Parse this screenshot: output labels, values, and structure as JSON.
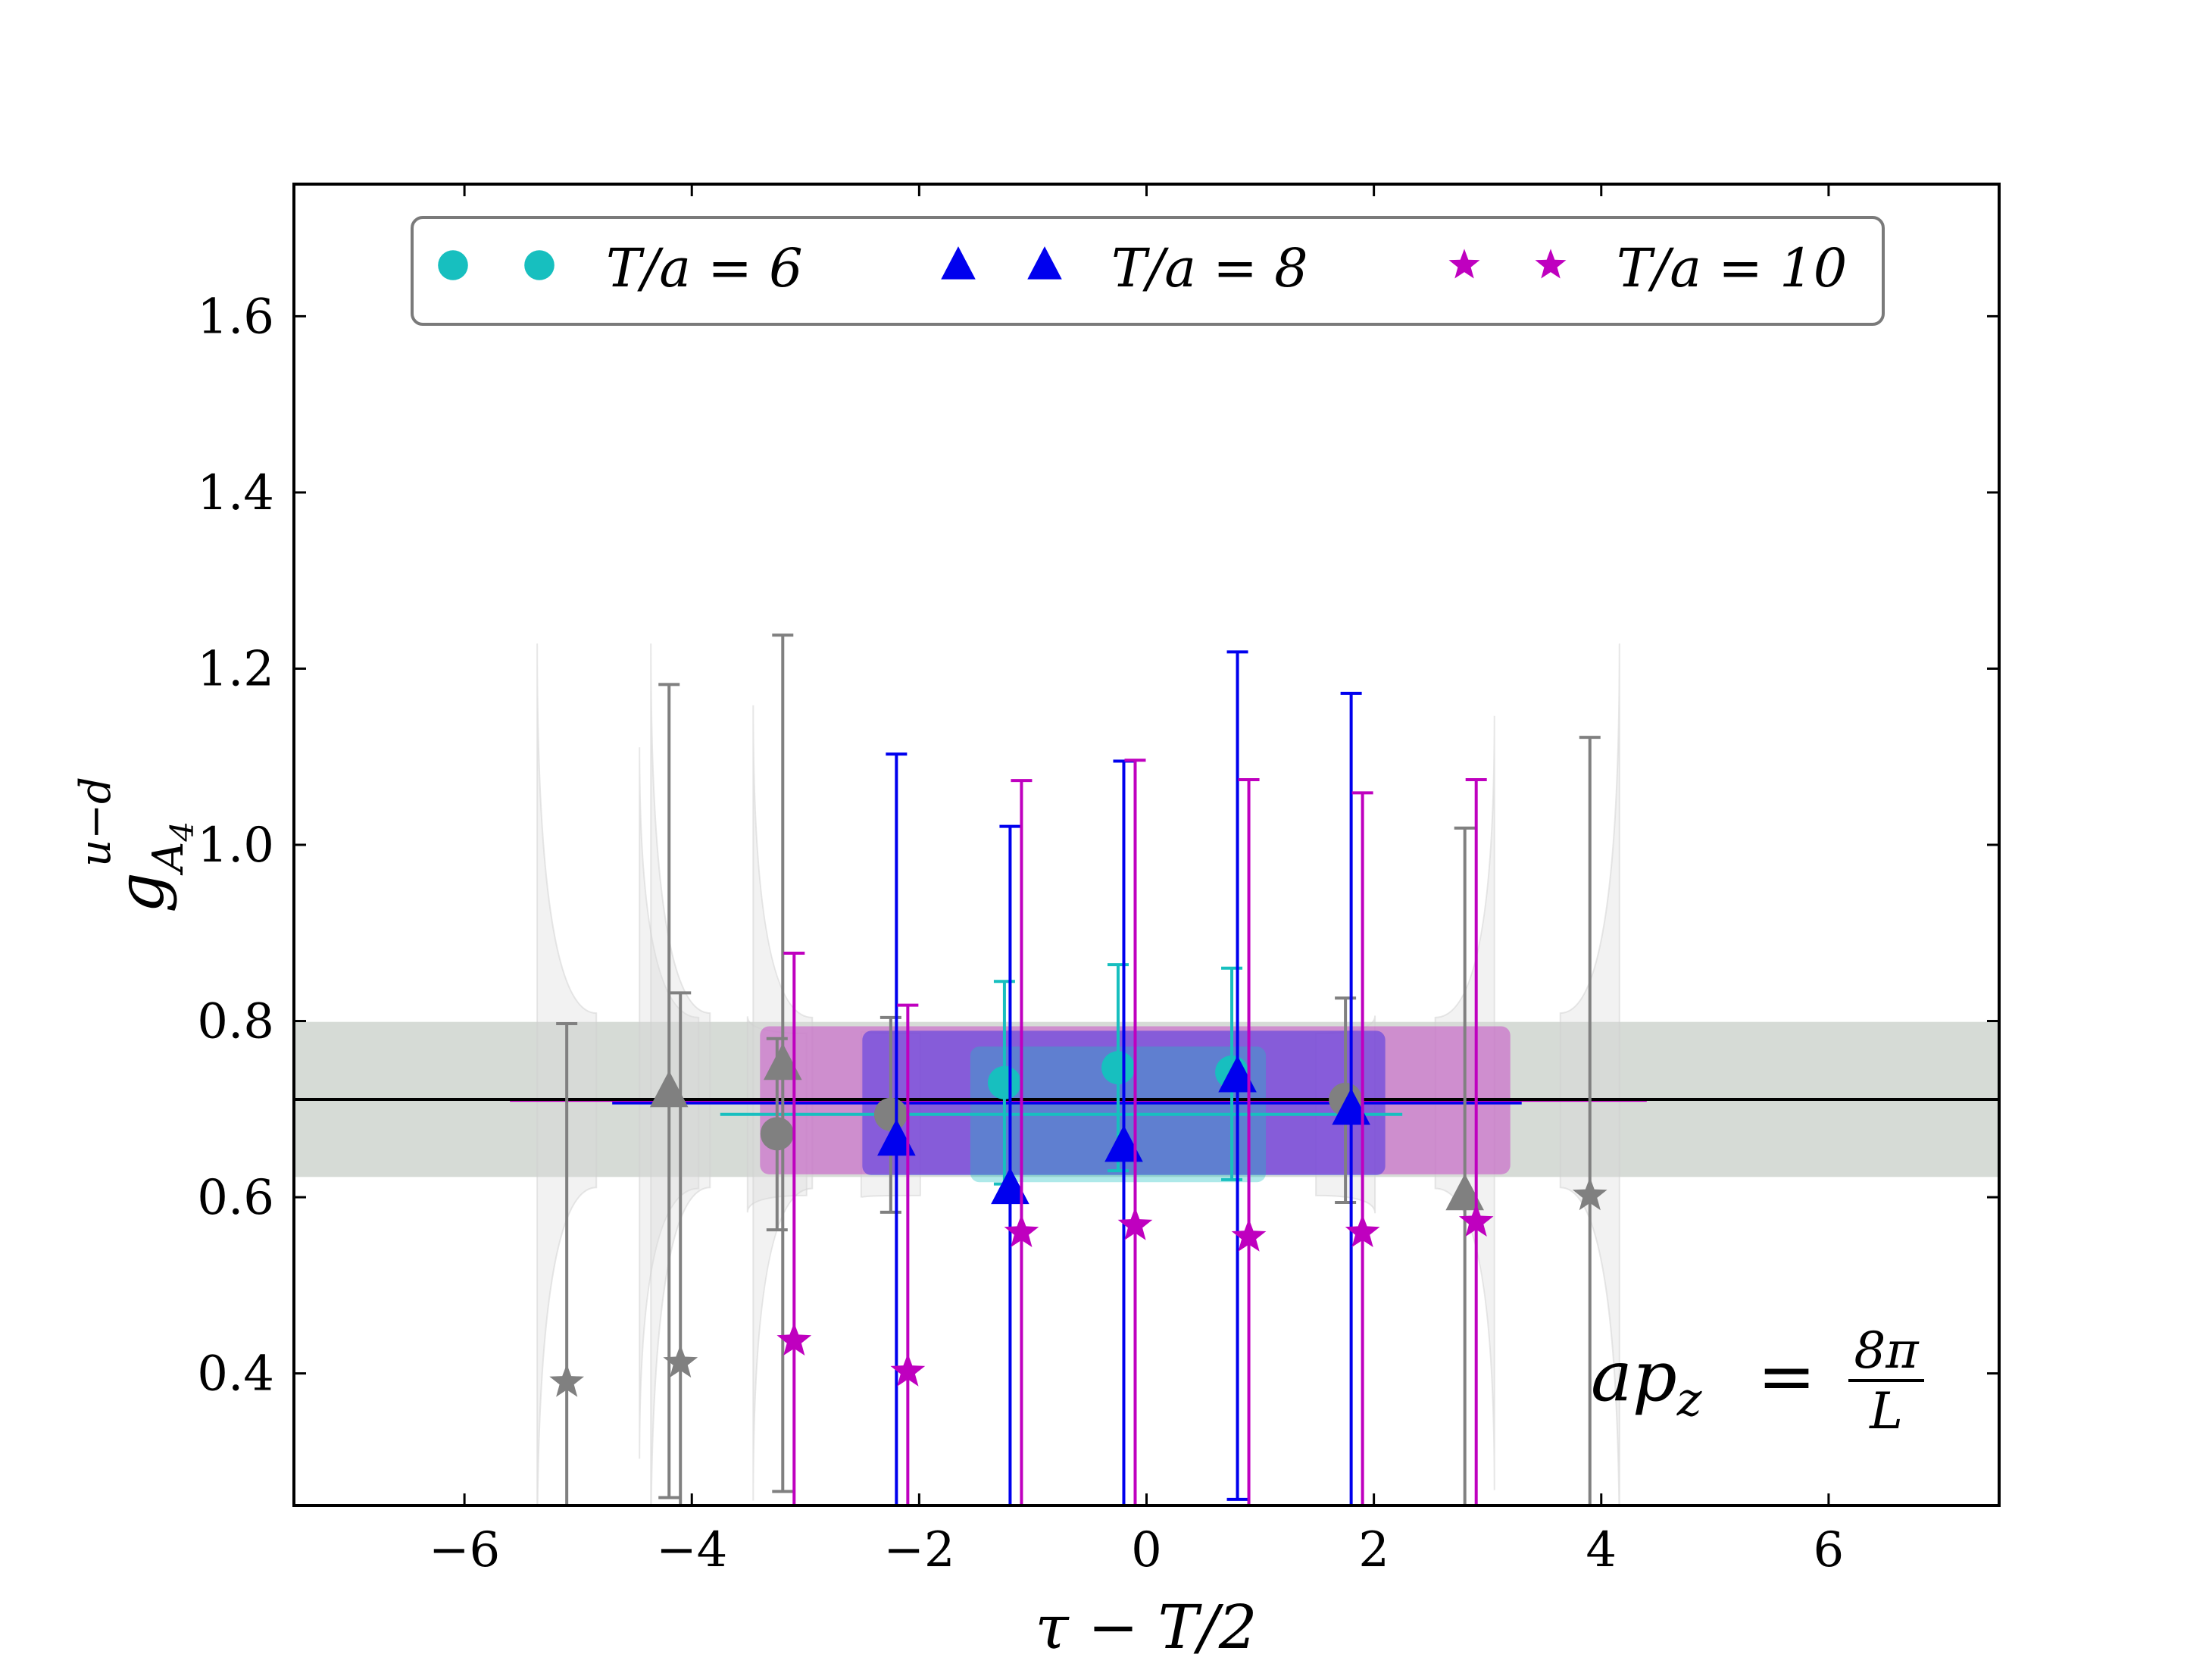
{
  "chart_data": {
    "type": "scatter",
    "title": "",
    "xlabel": "τ − T/2",
    "ylabel": "g",
    "ylabel_sup": "u−d",
    "ylabel_sub": "A",
    "ylabel_subsub": "4",
    "xlim": [
      -7.5,
      7.5
    ],
    "ylim": [
      0.25,
      1.75
    ],
    "xticks": [
      -6,
      -4,
      -2,
      0,
      2,
      4,
      6
    ],
    "xtick_labels": [
      "−6",
      "−4",
      "−2",
      "0",
      "2",
      "4",
      "6"
    ],
    "yticks": [
      0.4,
      0.6,
      0.8,
      1.0,
      1.2,
      1.4,
      1.6
    ],
    "ytick_labels": [
      "0.4",
      "0.6",
      "0.8",
      "1.0",
      "1.2",
      "1.4",
      "1.6"
    ],
    "grid": false,
    "legend_position": "top",
    "annotation": {
      "text": "ap",
      "sub": "z",
      "eq": "=",
      "num": "8π",
      "den": "L"
    },
    "horizontal_line": {
      "y": 0.711,
      "color": "#000000"
    },
    "horizontal_band": {
      "ymin": 0.623,
      "ymax": 0.799,
      "color": "#a3b0a3"
    },
    "series": [
      {
        "name": "T/a = 6",
        "marker": "circle",
        "color": "#17bfbf",
        "fit": {
          "y": 0.694,
          "ymin": 0.617,
          "ymax": 0.771,
          "xmin": -1.25,
          "xmax": 0.75,
          "line_xmin": -3.75,
          "line_xmax": 2.25
        },
        "active": [
          {
            "x": -1.25,
            "y": 0.73,
            "lo": 0.615,
            "hi": 0.845
          },
          {
            "x": -0.25,
            "y": 0.747,
            "lo": 0.63,
            "hi": 0.864
          },
          {
            "x": 0.75,
            "y": 0.742,
            "lo": 0.62,
            "hi": 0.86
          }
        ],
        "excluded": [
          {
            "x": -3.25,
            "y": 0.672,
            "lo": 0.563,
            "hi": 0.78
          },
          {
            "x": -2.25,
            "y": 0.694,
            "lo": 0.583,
            "hi": 0.804
          },
          {
            "x": 1.75,
            "y": 0.711,
            "lo": 0.594,
            "hi": 0.826
          }
        ]
      },
      {
        "name": "T/a = 8",
        "marker": "triangle",
        "color": "#0000ee",
        "fit": {
          "y": 0.707,
          "ymin": 0.625,
          "ymax": 0.789,
          "xmin": -2.2,
          "xmax": 1.8,
          "line_xmin": -4.7,
          "line_xmax": 3.3
        },
        "active": [
          {
            "x": -2.2,
            "y": 0.665,
            "lo": 0.228,
            "hi": 1.103
          },
          {
            "x": -1.2,
            "y": 0.61,
            "lo": 0.2,
            "hi": 1.021
          },
          {
            "x": -0.2,
            "y": 0.658,
            "lo": 0.22,
            "hi": 1.095
          },
          {
            "x": 0.8,
            "y": 0.737,
            "lo": 0.257,
            "hi": 1.219
          },
          {
            "x": 1.8,
            "y": 0.7,
            "lo": 0.228,
            "hi": 1.172
          }
        ],
        "excluded": [
          {
            "x": -4.2,
            "y": 0.72,
            "lo": 0.259,
            "hi": 1.182
          },
          {
            "x": -3.2,
            "y": 0.751,
            "lo": 0.266,
            "hi": 1.238
          },
          {
            "x": 2.8,
            "y": 0.603,
            "lo": 0.19,
            "hi": 1.019
          }
        ]
      },
      {
        "name": "T/a = 10",
        "marker": "star",
        "color": "#bf00bf",
        "fit": {
          "y": 0.71,
          "ymin": 0.626,
          "ymax": 0.794,
          "xmin": -3.1,
          "xmax": 2.9,
          "line_xmin": -5.6,
          "line_xmax": 4.4
        },
        "active": [
          {
            "x": -3.1,
            "y": 0.437,
            "lo": 0.1,
            "hi": 0.877
          },
          {
            "x": -2.1,
            "y": 0.402,
            "lo": 0.1,
            "hi": 0.818
          },
          {
            "x": -1.1,
            "y": 0.56,
            "lo": 0.1,
            "hi": 1.073
          },
          {
            "x": -0.1,
            "y": 0.568,
            "lo": 0.1,
            "hi": 1.096
          },
          {
            "x": 0.9,
            "y": 0.555,
            "lo": 0.1,
            "hi": 1.074
          },
          {
            "x": 1.9,
            "y": 0.56,
            "lo": 0.1,
            "hi": 1.059
          },
          {
            "x": 2.9,
            "y": 0.572,
            "lo": 0.1,
            "hi": 1.074
          }
        ],
        "excluded": [
          {
            "x": -5.1,
            "y": 0.39,
            "lo": 0.1,
            "hi": 0.797
          },
          {
            "x": -4.1,
            "y": 0.412,
            "lo": 0.1,
            "hi": 0.832
          },
          {
            "x": 3.9,
            "y": 0.602,
            "lo": 0.1,
            "hi": 1.122
          }
        ]
      }
    ],
    "excluded_color": "#808080"
  }
}
